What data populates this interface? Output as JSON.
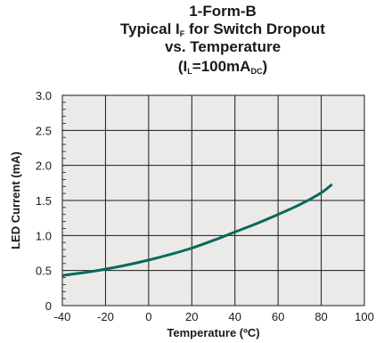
{
  "title": {
    "line1": "1-Form-B",
    "line2_pre": "Typical I",
    "line2_sub": "F",
    "line2_post": " for Switch Dropout",
    "line3": "vs. Temperature",
    "line4_open": "(I",
    "line4_sub1": "L",
    "line4_mid": "=100mA",
    "line4_sub2": "DC",
    "line4_close": ")"
  },
  "chart_data": {
    "type": "line",
    "xlabel": "Temperature (ºC)",
    "ylabel": "LED Current (mA)",
    "xlim": [
      -40,
      100
    ],
    "ylim": [
      0,
      3.0
    ],
    "x_ticks": [
      "-40",
      "-20",
      "0",
      "20",
      "40",
      "60",
      "80",
      "100"
    ],
    "y_ticks": [
      "0",
      "0.5",
      "1.0",
      "1.5",
      "2.0",
      "2.5",
      "3.0"
    ],
    "grid": true,
    "series": [
      {
        "color": "#006b5f",
        "x": [
          -40,
          -30,
          -20,
          -10,
          0,
          10,
          20,
          30,
          40,
          50,
          60,
          70,
          80,
          85
        ],
        "y": [
          0.43,
          0.47,
          0.52,
          0.58,
          0.65,
          0.73,
          0.82,
          0.93,
          1.05,
          1.17,
          1.3,
          1.44,
          1.61,
          1.73
        ]
      }
    ]
  }
}
